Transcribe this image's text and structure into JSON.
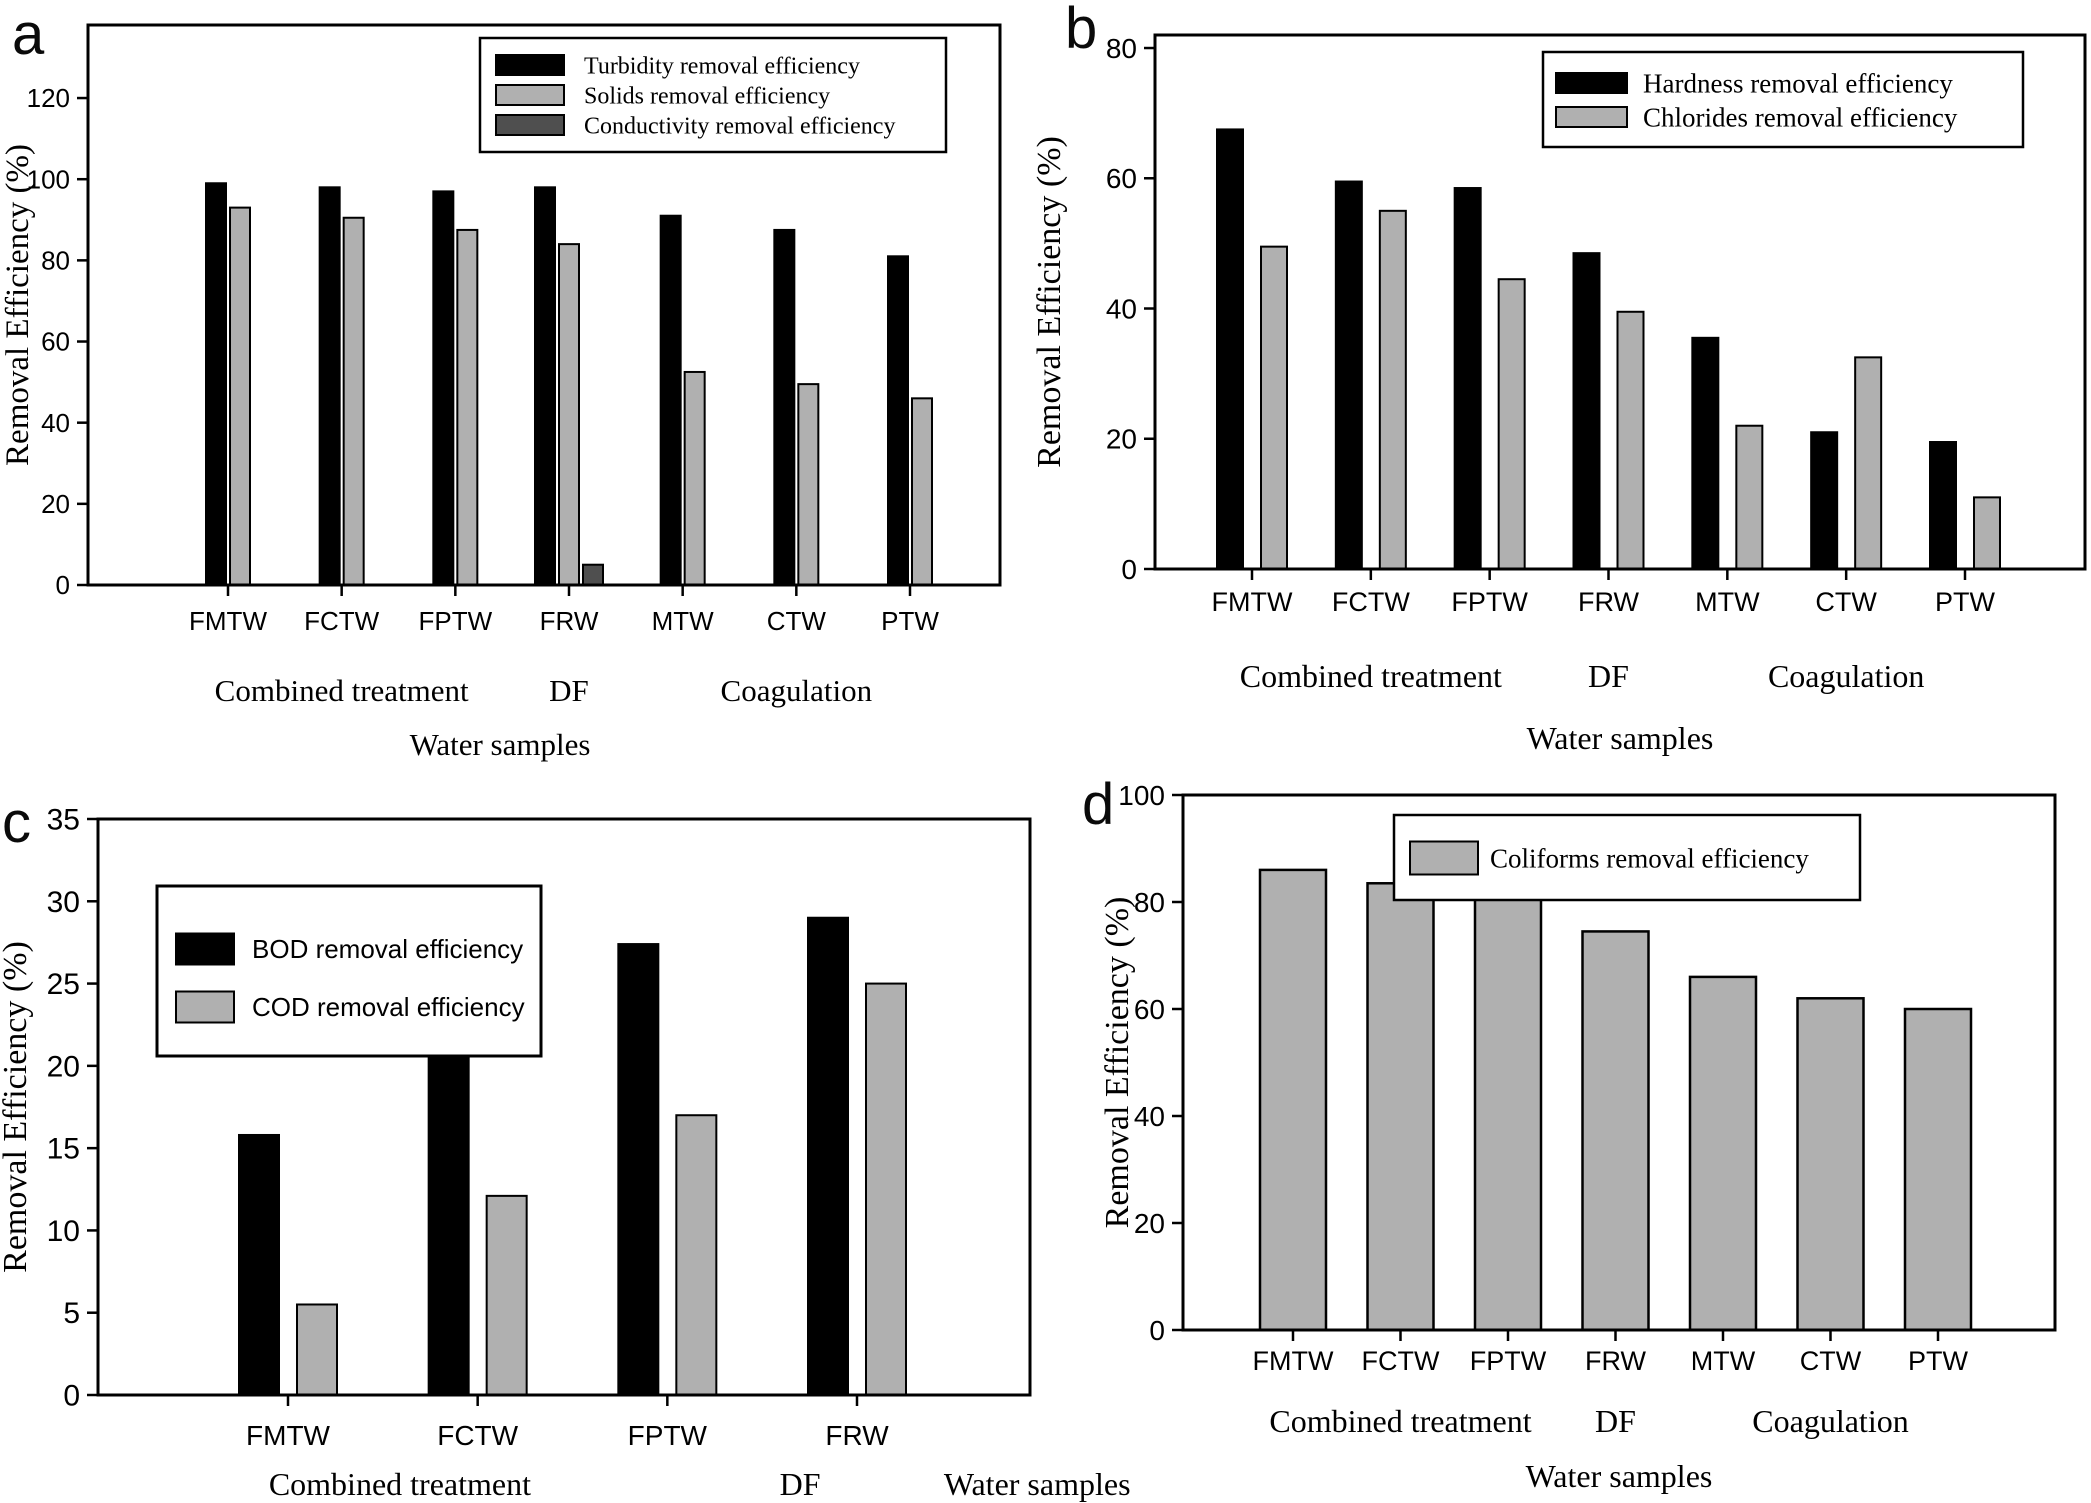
{
  "figure": {
    "background": "#ffffff",
    "bar_outline_color": "#000000",
    "black_series_color": "#000000",
    "light_gray_series_color": "#b0b0b0",
    "dark_gray_series_color": "#4f4f4f"
  },
  "chart_data": [
    {
      "panel_label": "a",
      "type": "bar",
      "title": "",
      "ylabel": "Removal Efficiency (%)",
      "xlabel": "Water samples",
      "ylim": [
        0,
        138
      ],
      "yticks": [
        0,
        20,
        40,
        60,
        80,
        100,
        120
      ],
      "grid": "off",
      "legend_position": "top-right-inside",
      "categories": [
        "FMTW",
        "FCTW",
        "FPTW",
        "FRW",
        "MTW",
        "CTW",
        "PTW"
      ],
      "group_labels": [
        {
          "label": "Combined treatment",
          "index": 1
        },
        {
          "label": "DF",
          "index": 3
        },
        {
          "label": "Coagulation",
          "index": 5
        }
      ],
      "series": [
        {
          "name": "Turbidity removal efficiency",
          "color": "#000000",
          "values": [
            99,
            98,
            97,
            98,
            91,
            87.5,
            81
          ]
        },
        {
          "name": "Solids removal efficiency",
          "color": "#b0b0b0",
          "values": [
            93,
            90.5,
            87.5,
            84,
            52.5,
            49.5,
            46
          ]
        },
        {
          "name": "Conductivity removal efficiency",
          "color": "#4f4f4f",
          "values": [
            null,
            null,
            null,
            5,
            null,
            null,
            null
          ]
        }
      ]
    },
    {
      "panel_label": "b",
      "type": "bar",
      "title": "",
      "ylabel": "Removal Efficiency (%)",
      "xlabel": "Water samples",
      "ylim": [
        0,
        82
      ],
      "yticks": [
        0,
        20,
        40,
        60,
        80
      ],
      "grid": "off",
      "legend_position": "top-right-inside",
      "categories": [
        "FMTW",
        "FCTW",
        "FPTW",
        "FRW",
        "MTW",
        "CTW",
        "PTW"
      ],
      "group_labels": [
        {
          "label": "Combined treatment",
          "index": 1
        },
        {
          "label": "DF",
          "index": 3
        },
        {
          "label": "Coagulation",
          "index": 5
        }
      ],
      "series": [
        {
          "name": "Hardness removal efficiency",
          "color": "#000000",
          "values": [
            67.5,
            59.5,
            58.5,
            48.5,
            35.5,
            21,
            19.5
          ]
        },
        {
          "name": "Chlorides removal efficiency",
          "color": "#b0b0b0",
          "values": [
            49.5,
            55,
            44.5,
            39.5,
            22,
            32.5,
            11
          ]
        }
      ]
    },
    {
      "panel_label": "c",
      "type": "bar",
      "title": "",
      "ylabel": "Removal Efficiency (%)",
      "xlabel": "Water samples",
      "ylim": [
        0,
        35
      ],
      "yticks": [
        0,
        5,
        10,
        15,
        20,
        25,
        30,
        35
      ],
      "grid": "off",
      "legend_position": "top-left-inside",
      "categories": [
        "FMTW",
        "FCTW",
        "FPTW",
        "FRW"
      ],
      "group_labels": [
        {
          "label": "Combined treatment",
          "index": 0.59
        },
        {
          "label": "DF",
          "index": 2.7
        }
      ],
      "series": [
        {
          "name": "BOD removal efficiency",
          "color": "#000000",
          "values": [
            15.8,
            21.8,
            27.4,
            29
          ]
        },
        {
          "name": "COD removal efficiency",
          "color": "#b0b0b0",
          "values": [
            5.5,
            12.1,
            17,
            25
          ]
        }
      ]
    },
    {
      "panel_label": "d",
      "type": "bar",
      "title": "",
      "ylabel": "Removal Efficiency (%)",
      "xlabel": "Water samples",
      "ylim": [
        0,
        100
      ],
      "yticks": [
        0,
        20,
        40,
        60,
        80,
        100
      ],
      "grid": "off",
      "legend_position": "top-center-inside",
      "categories": [
        "FMTW",
        "FCTW",
        "FPTW",
        "FRW",
        "MTW",
        "CTW",
        "PTW"
      ],
      "group_labels": [
        {
          "label": "Combined treatment",
          "index": 1
        },
        {
          "label": "DF",
          "index": 3
        },
        {
          "label": "Coagulation",
          "index": 5
        }
      ],
      "series": [
        {
          "name": "Coliforms removal efficiency",
          "color": "#b0b0b0",
          "values": [
            86,
            83.5,
            81.5,
            74.5,
            66,
            62,
            60
          ]
        }
      ]
    }
  ]
}
